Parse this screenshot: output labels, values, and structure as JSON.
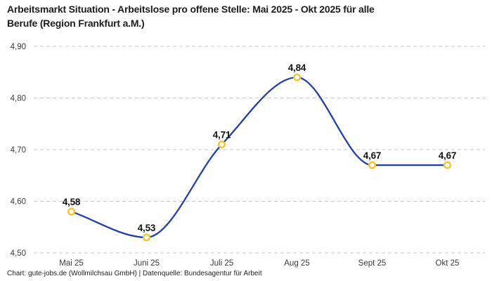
{
  "header": {
    "title": "Arbeitsmarkt Situation - Arbeitslose pro offene Stelle: Mai 2025 - Okt 2025 für alle\nBerufe (Region Frankfurt a.M.)"
  },
  "footer": {
    "credit": "Chart: gute-jobs.de (Wollmilchsau GmbH) | Datenquelle: Bundesagentur für Arbeit"
  },
  "chart_data": {
    "type": "line",
    "title": "Arbeitsmarkt Situation - Arbeitslose pro offene Stelle: Mai 2025 - Okt 2025 für alle Berufe (Region Frankfurt a.M.)",
    "categories": [
      "Mai 25",
      "Juni 25",
      "Juli 25",
      "Aug 25",
      "Sept 25",
      "Okt 25"
    ],
    "values": [
      4.58,
      4.53,
      4.71,
      4.84,
      4.67,
      4.67
    ],
    "value_labels": [
      "4,58",
      "4,53",
      "4,71",
      "4,84",
      "4,67",
      "4,67"
    ],
    "xlabel": "",
    "ylabel": "",
    "ylim": [
      4.5,
      4.9
    ],
    "y_ticks": [
      {
        "value": 4.5,
        "label": "4,50"
      },
      {
        "value": 4.6,
        "label": "4,60"
      },
      {
        "value": 4.7,
        "label": "4,70"
      },
      {
        "value": 4.8,
        "label": "4,80"
      },
      {
        "value": 4.9,
        "label": "4,90"
      }
    ],
    "grid": "horizontal-dashed",
    "legend": "none",
    "curve": "monotone",
    "colors": {
      "line": "#2441a5",
      "marker_stroke": "#f8c331",
      "marker_fill": "#ffffff",
      "gridline": "#c7c7c7",
      "tick_text": "#3b3b3b",
      "data_label": "#141414"
    }
  }
}
